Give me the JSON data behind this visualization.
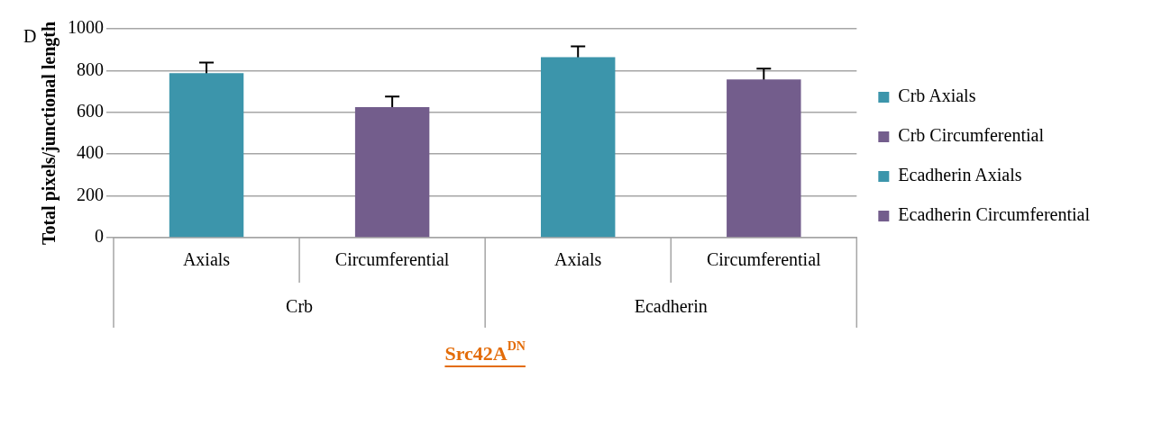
{
  "chart_data": {
    "type": "bar",
    "title": "D",
    "xlabel": "Src42A$^{DN}$",
    "ylabel": "Total pixels/junctional length",
    "categories": [
      "Axials",
      "Circumferential",
      "Axials",
      "Circumferential"
    ],
    "annotations": [
      "Crb",
      "Ecadherin"
    ],
    "series": [
      {
        "name": "Crb Axials",
        "color": "#3c95ab",
        "values": [
          788,
          null,
          null,
          null
        ],
        "errors": [
          50,
          null,
          null,
          null
        ]
      },
      {
        "name": "Crb Circumferential",
        "color": "#735d8c",
        "values": [
          null,
          625,
          null,
          null
        ],
        "errors": [
          null,
          51,
          null,
          null
        ]
      },
      {
        "name": "Ecadherin Axials",
        "color": "#3c95ab",
        "values": [
          null,
          null,
          864,
          null
        ],
        "errors": [
          null,
          null,
          52,
          null
        ]
      },
      {
        "name": "Ecadherin Circumferential",
        "color": "#735d8c",
        "values": [
          null,
          null,
          null,
          758
        ],
        "errors": [
          null,
          null,
          null,
          51
        ]
      }
    ],
    "ylim": [
      0,
      1000
    ],
    "yticks": [
      0,
      200,
      400,
      600,
      800,
      1000
    ],
    "grid": "y",
    "legend": "right"
  }
}
